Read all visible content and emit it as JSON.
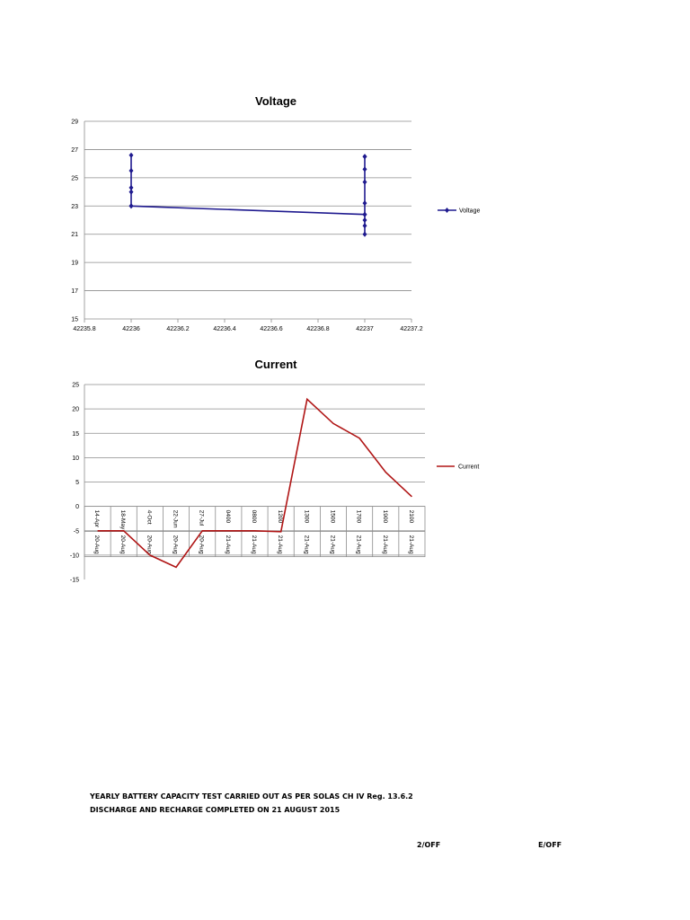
{
  "chart_data": [
    {
      "type": "line",
      "title": "Voltage",
      "xlim": [
        42235.8,
        42237.2
      ],
      "ylim": [
        15,
        29
      ],
      "xticks": [
        "42235.8",
        "42236",
        "42236.2",
        "42236.4",
        "42236.6",
        "42236.8",
        "42237",
        "42237.2"
      ],
      "yticks": [
        "15",
        "17",
        "19",
        "21",
        "23",
        "25",
        "27",
        "29"
      ],
      "legend": "right",
      "grid": true,
      "series": [
        {
          "name": "Voltage",
          "color": "#1f1a8f",
          "x": [
            42236,
            42236,
            42236,
            42236,
            42236,
            42236,
            42237,
            42237,
            42237,
            42237,
            42237,
            42237,
            42237,
            42237,
            42237,
            42237
          ],
          "y": [
            26.6,
            25.5,
            24.3,
            24.0,
            23.0,
            23.0,
            22.4,
            22.4,
            22.0,
            21.6,
            21.0,
            23.2,
            24.7,
            25.6,
            26.5,
            26.5
          ]
        }
      ]
    },
    {
      "type": "line",
      "title": "Current",
      "ylim": [
        -15,
        25
      ],
      "yticks": [
        "-15",
        "-10",
        "-5",
        "0",
        "5",
        "10",
        "15",
        "20",
        "25"
      ],
      "legend": "right",
      "grid": true,
      "categories": [
        [
          "14-Apr",
          "20-Aug"
        ],
        [
          "18-May",
          "20-Aug"
        ],
        [
          "4-Oct",
          "20-Aug"
        ],
        [
          "22-Jun",
          "20-Aug"
        ],
        [
          "27-Jul",
          "20-Aug"
        ],
        [
          "0400",
          "21-Aug"
        ],
        [
          "0800",
          "21-Aug"
        ],
        [
          "1200",
          "21-Aug"
        ],
        [
          "1300",
          "21-Aug"
        ],
        [
          "1500",
          "21-Aug"
        ],
        [
          "1700",
          "21-Aug"
        ],
        [
          "1900",
          "21-Aug"
        ],
        [
          "2100",
          "21-Aug"
        ]
      ],
      "series": [
        {
          "name": "Current",
          "color": "#b01515",
          "values": [
            -5,
            -5,
            -10,
            -12.5,
            -5,
            -5,
            -5,
            -5.2,
            22,
            17,
            14,
            7,
            2
          ]
        }
      ]
    }
  ],
  "footer": {
    "line1": "YEARLY BATTERY CAPACITY TEST CARRIED OUT AS PER SOLAS CH IV Reg. 13.6.2",
    "line2": "DISCHARGE AND RECHARGE COMPLETED ON 21 AUGUST 2015",
    "sign_left": "2/OFF",
    "sign_right": "E/OFF"
  }
}
